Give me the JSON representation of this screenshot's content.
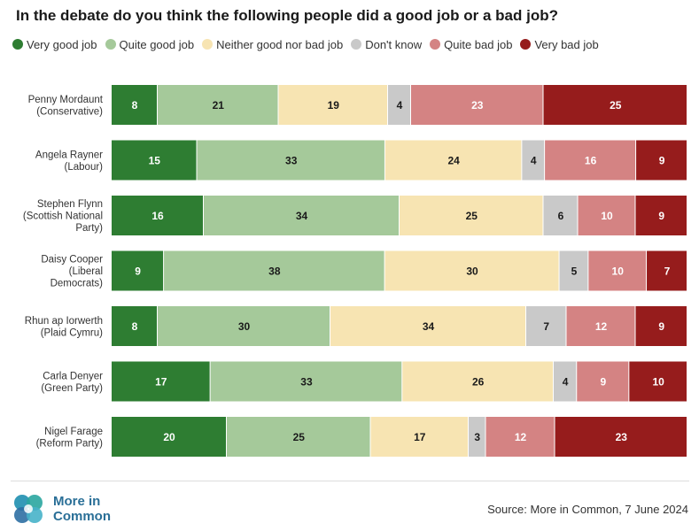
{
  "chart_data": {
    "type": "bar",
    "orientation": "horizontal",
    "stacked": true,
    "title": "In the debate do you think the following people did a good job or a bad job?",
    "categories": [
      [
        "Penny Mordaunt",
        "(Conservative)"
      ],
      [
        "Angela Rayner",
        "(Labour)"
      ],
      [
        "Stephen Flynn",
        "(Scottish National",
        "Party)"
      ],
      [
        "Daisy Cooper",
        "(Liberal",
        "Democrats)"
      ],
      [
        "Rhun ap Iorwerth",
        "(Plaid Cymru)"
      ],
      [
        "Carla Denyer",
        "(Green Party)"
      ],
      [
        "Nigel Farage",
        "(Reform Party)"
      ]
    ],
    "series": [
      {
        "name": "Very good job",
        "color": "#2e7d32",
        "label_color": "#ffffff",
        "values": [
          8,
          15,
          16,
          9,
          8,
          17,
          20
        ]
      },
      {
        "name": "Quite good job",
        "color": "#a5c99a",
        "label_color": "#1a1a1a",
        "values": [
          21,
          33,
          34,
          38,
          30,
          33,
          25
        ]
      },
      {
        "name": "Neither good nor bad job",
        "color": "#f7e4b2",
        "label_color": "#1a1a1a",
        "values": [
          19,
          24,
          25,
          30,
          34,
          26,
          17
        ]
      },
      {
        "name": "Don't know",
        "color": "#c9c9c9",
        "label_color": "#1a1a1a",
        "values": [
          4,
          4,
          6,
          5,
          7,
          4,
          3
        ]
      },
      {
        "name": "Quite bad job",
        "color": "#d48383",
        "label_color": "#ffffff",
        "values": [
          23,
          16,
          10,
          10,
          12,
          9,
          12
        ]
      },
      {
        "name": "Very bad job",
        "color": "#961c1c",
        "label_color": "#ffffff",
        "values": [
          25,
          9,
          9,
          7,
          9,
          10,
          23
        ]
      }
    ],
    "xlim": [
      0,
      100
    ],
    "grid": false,
    "legend": "top"
  },
  "branding": {
    "logo_name": "More in Common",
    "source": "Source: More in Common, 7 June 2024"
  }
}
